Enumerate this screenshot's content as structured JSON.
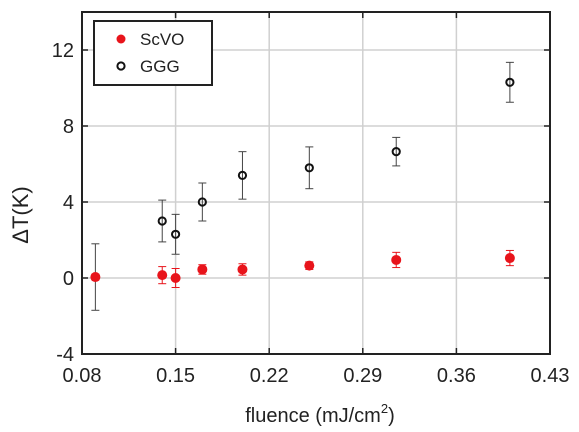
{
  "chart_data": {
    "type": "scatter",
    "xlabel_main": "fluence (mJ/cm",
    "xlabel_sup": "2",
    "xlabel_end": ")",
    "ylabel": "ΔT(K)",
    "xlim": [
      0.08,
      0.43
    ],
    "ylim": [
      -4,
      14
    ],
    "xticks": [
      0.08,
      0.15,
      0.22,
      0.29,
      0.36,
      0.43
    ],
    "xtick_labels": [
      "0.08",
      "0.15",
      "0.22",
      "0.29",
      "0.36",
      "0.43"
    ],
    "yticks": [
      -4,
      0,
      4,
      8,
      12
    ],
    "ytick_labels": [
      "-4",
      "0",
      "4",
      "8",
      "12"
    ],
    "grid": true,
    "legend_position": "top-left",
    "series": [
      {
        "name": "ScVO",
        "marker": "filled-circle",
        "color": "#e8141b",
        "points": [
          {
            "x": 0.09,
            "y": 0.05,
            "err": 0.15
          },
          {
            "x": 0.14,
            "y": 0.15,
            "err": 0.45
          },
          {
            "x": 0.15,
            "y": 0.0,
            "err": 0.5
          },
          {
            "x": 0.17,
            "y": 0.45,
            "err": 0.25
          },
          {
            "x": 0.2,
            "y": 0.45,
            "err": 0.3
          },
          {
            "x": 0.25,
            "y": 0.65,
            "err": 0.2
          },
          {
            "x": 0.315,
            "y": 0.95,
            "err": 0.4
          },
          {
            "x": 0.4,
            "y": 1.05,
            "err": 0.4
          }
        ]
      },
      {
        "name": "GGG",
        "marker": "open-circle",
        "color": "#111111",
        "points": [
          {
            "x": 0.09,
            "y": 0.05,
            "err": 1.75
          },
          {
            "x": 0.14,
            "y": 3.0,
            "err": 1.1
          },
          {
            "x": 0.15,
            "y": 2.3,
            "err": 1.05
          },
          {
            "x": 0.17,
            "y": 4.0,
            "err": 1.0
          },
          {
            "x": 0.2,
            "y": 5.4,
            "err": 1.25
          },
          {
            "x": 0.25,
            "y": 5.8,
            "err": 1.1
          },
          {
            "x": 0.315,
            "y": 6.65,
            "err": 0.75
          },
          {
            "x": 0.4,
            "y": 10.3,
            "err": 1.05
          }
        ]
      }
    ]
  }
}
